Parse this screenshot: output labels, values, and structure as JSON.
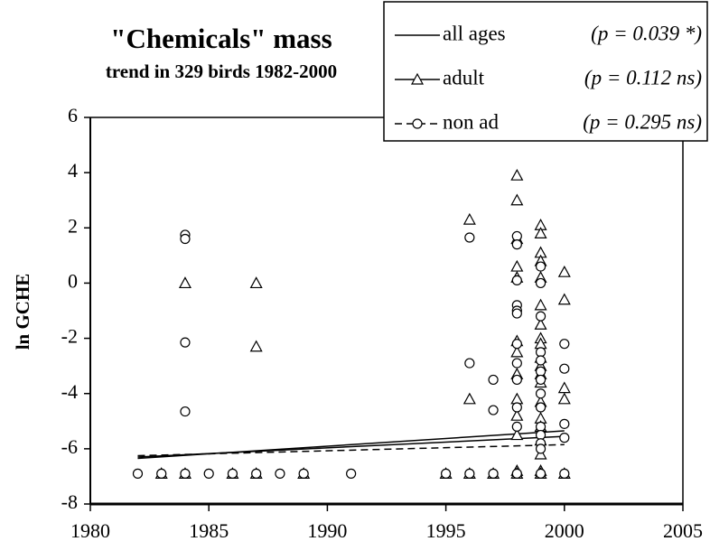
{
  "chart_data": {
    "type": "scatter",
    "title": "\"Chemicals\"  mass",
    "subtitle": "trend in 329 birds 1982-2000",
    "y_label": "ln GCHE",
    "xlim": [
      1980,
      2005
    ],
    "xticks": [
      1980,
      1985,
      1990,
      1995,
      2000,
      2005
    ],
    "ylim": [
      -8,
      6
    ],
    "yticks": [
      -8,
      -6,
      -4,
      -2,
      0,
      2,
      4,
      6
    ],
    "series": [
      {
        "name": "all ages",
        "note": "(p = 0.039 *)",
        "color": "#000000",
        "dash": false,
        "trend_x": [
          1982,
          2000
        ],
        "trend_values": [
          -6.3,
          -5.55
        ]
      },
      {
        "name": "adult",
        "note": "(p = 0.112 ns)",
        "color": "#000000",
        "marker": "triangle",
        "dash": false,
        "trend_x": [
          1982,
          2000
        ],
        "trend_values": [
          -6.35,
          -5.35
        ],
        "x": [
          1983,
          1984,
          1984,
          1986,
          1987,
          1987,
          1987,
          1989,
          1995,
          1996,
          1996,
          1996,
          1997,
          1998,
          1998,
          1998,
          1998,
          1998,
          1998,
          1998,
          1998,
          1998,
          1998,
          1998,
          1998,
          1998,
          1999,
          1999,
          1999,
          1999,
          1999,
          1999,
          1999,
          1999,
          1999,
          1999,
          1999,
          1999,
          1999,
          1999,
          1999,
          1999,
          1999,
          1999,
          1999,
          1999,
          2000,
          2000,
          2000,
          2000,
          2000
        ],
        "values": [
          -6.9,
          0.0,
          -6.9,
          -6.9,
          0.0,
          -2.3,
          -6.9,
          -6.9,
          -6.9,
          2.3,
          -4.2,
          -6.9,
          -6.9,
          3.9,
          3.0,
          1.6,
          0.6,
          0.2,
          -2.1,
          -2.5,
          -3.3,
          -4.2,
          -4.8,
          -5.5,
          -6.8,
          -6.9,
          2.1,
          1.8,
          1.1,
          0.8,
          0.2,
          -0.8,
          -1.5,
          -2.0,
          -2.2,
          -2.7,
          -3.0,
          -3.3,
          -3.6,
          -4.3,
          -4.9,
          -5.2,
          -5.7,
          -6.2,
          -6.8,
          -6.9,
          0.4,
          -0.6,
          -3.8,
          -4.2,
          -6.9
        ]
      },
      {
        "name": "non ad",
        "note": "(p = 0.295 ns)",
        "color": "#000000",
        "marker": "circle",
        "dash": true,
        "trend_x": [
          1982,
          2000
        ],
        "trend_values": [
          -6.25,
          -5.85
        ],
        "x": [
          1982,
          1983,
          1984,
          1984,
          1984,
          1984,
          1984,
          1985,
          1986,
          1987,
          1988,
          1989,
          1991,
          1995,
          1996,
          1996,
          1996,
          1997,
          1997,
          1997,
          1998,
          1998,
          1998,
          1998,
          1998,
          1998,
          1998,
          1998,
          1998,
          1998,
          1998,
          1998,
          1999,
          1999,
          1999,
          1999,
          1999,
          1999,
          1999,
          1999,
          1999,
          1999,
          1999,
          1999,
          1999,
          1999,
          2000,
          2000,
          2000,
          2000,
          2000
        ],
        "values": [
          -6.9,
          -6.9,
          1.75,
          1.6,
          -2.15,
          -4.65,
          -6.9,
          -6.9,
          -6.9,
          -6.9,
          -6.9,
          -6.9,
          -6.9,
          -6.9,
          1.65,
          -2.9,
          -6.9,
          -3.5,
          -4.6,
          -6.9,
          1.7,
          1.4,
          0.1,
          -0.8,
          -1.0,
          -1.1,
          -2.2,
          -2.9,
          -3.5,
          -4.5,
          -5.2,
          -6.9,
          0.6,
          0.0,
          -1.2,
          -2.5,
          -2.8,
          -3.2,
          -3.5,
          -4.0,
          -4.5,
          -5.2,
          -5.5,
          -5.8,
          -6.0,
          -6.9,
          -2.2,
          -3.1,
          -5.1,
          -5.6,
          -6.9
        ]
      }
    ]
  }
}
